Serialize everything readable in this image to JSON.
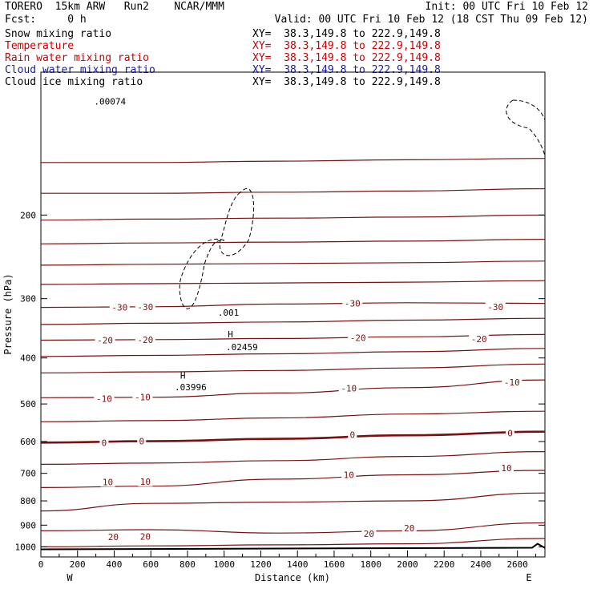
{
  "header": {
    "model": "TORERO  15km ARW   Run2    NCAR/MMM",
    "init": "Init: 00 UTC Fri 10 Feb 12",
    "fcst": "Fcst:     0 h",
    "valid": "Valid: 00 UTC Fri 10 Feb 12 (18 CST Thu 09 Feb 12)"
  },
  "fields": [
    {
      "name": "Snow mixing ratio",
      "xy": "XY=  38.3,149.8 to 222.9,149.8",
      "color": "#000000"
    },
    {
      "name": "Temperature",
      "xy": "XY=  38.3,149.8 to 222.9,149.8",
      "color": "#cc0000"
    },
    {
      "name": "Rain water mixing ratio",
      "xy": "XY=  38.3,149.8 to 222.9,149.8",
      "color": "#cc0000"
    },
    {
      "name": "Cloud water mixing ratio",
      "xy": "XY=  38.3,149.8 to 222.9,149.8",
      "color": "#1a1aa6"
    },
    {
      "name": "Cloud ice mixing ratio",
      "xy": "XY=  38.3,149.8 to 222.9,149.8",
      "color": "#000000"
    }
  ],
  "chart_data": {
    "type": "line",
    "xlabel": "Distance (km)",
    "ylabel": "Pressure (hPa)",
    "xlim": [
      0,
      2750
    ],
    "ylim": [
      1050,
      100
    ],
    "y_scale": "log",
    "xticks": [
      0,
      200,
      400,
      600,
      800,
      1000,
      1200,
      1400,
      1600,
      1800,
      2000,
      2200,
      2400,
      2600
    ],
    "yticks": [
      200,
      300,
      400,
      500,
      600,
      700,
      800,
      900,
      1000
    ],
    "x_end_labels": {
      "left": "W",
      "right": "E"
    },
    "contour_color": "#7a1010",
    "contour_labels": [
      {
        "text": "-30",
        "x": 430,
        "p": 313
      },
      {
        "text": "-30",
        "x": 570,
        "p": 312
      },
      {
        "text": "-30",
        "x": 1700,
        "p": 307
      },
      {
        "text": "-30",
        "x": 2480,
        "p": 312
      },
      {
        "text": "-20",
        "x": 350,
        "p": 367
      },
      {
        "text": "-20",
        "x": 570,
        "p": 366
      },
      {
        "text": "-20",
        "x": 1730,
        "p": 363
      },
      {
        "text": "-20",
        "x": 2390,
        "p": 365
      },
      {
        "text": "-10",
        "x": 345,
        "p": 487
      },
      {
        "text": "-10",
        "x": 555,
        "p": 484
      },
      {
        "text": "-10",
        "x": 1680,
        "p": 463
      },
      {
        "text": "-10",
        "x": 2570,
        "p": 450
      },
      {
        "text": "0",
        "x": 345,
        "p": 603
      },
      {
        "text": "0",
        "x": 550,
        "p": 599
      },
      {
        "text": "0",
        "x": 1700,
        "p": 581
      },
      {
        "text": "0",
        "x": 2560,
        "p": 576
      },
      {
        "text": "10",
        "x": 365,
        "p": 730
      },
      {
        "text": "10",
        "x": 570,
        "p": 728
      },
      {
        "text": "10",
        "x": 1680,
        "p": 705
      },
      {
        "text": "10",
        "x": 2540,
        "p": 682
      },
      {
        "text": "20",
        "x": 395,
        "p": 952
      },
      {
        "text": "20",
        "x": 570,
        "p": 951
      },
      {
        "text": "20",
        "x": 1790,
        "p": 938
      },
      {
        "text": "20",
        "x": 2010,
        "p": 913
      }
    ],
    "isotherms": [
      {
        "p": [
          155,
          155,
          154,
          153,
          152
        ]
      },
      {
        "p": [
          180,
          180,
          179,
          178,
          176
        ]
      },
      {
        "p": [
          205,
          204,
          203,
          202,
          200
        ]
      },
      {
        "p": [
          230,
          229,
          228,
          227,
          225
        ]
      },
      {
        "p": [
          255,
          254,
          253,
          252,
          250
        ]
      },
      {
        "p": [
          280,
          279,
          278,
          277,
          275
        ]
      },
      {
        "p": [
          313,
          312,
          308,
          306,
          307
        ]
      },
      {
        "p": [
          340,
          338,
          336,
          333,
          330
        ]
      },
      {
        "p": [
          367,
          366,
          364,
          361,
          357
        ]
      },
      {
        "p": [
          397,
          395,
          392,
          388,
          382
        ]
      },
      {
        "p": [
          430,
          428,
          425,
          420,
          412
        ]
      },
      {
        "p": [
          485,
          484,
          474,
          462,
          445
        ]
      },
      {
        "p": [
          545,
          542,
          535,
          525,
          518
        ]
      },
      {
        "p": [
          603,
          599,
          592,
          582,
          572
        ]
      },
      {
        "p": [
          670,
          666,
          658,
          645,
          630
        ]
      },
      {
        "p": [
          750,
          745,
          720,
          705,
          690
        ]
      },
      {
        "p": [
          840,
          810,
          805,
          800,
          770
        ]
      },
      {
        "p": [
          925,
          920,
          935,
          925,
          890
        ]
      },
      {
        "p": [
          1000,
          995,
          990,
          985,
          960
        ]
      }
    ],
    "thick_isotherm_index": 13,
    "ground_p": 1012,
    "annotations": [
      {
        "text": ".00074",
        "x": 290,
        "p": 117
      },
      {
        "text": ".001",
        "x": 965,
        "p": 326
      },
      {
        "text": "H",
        "x": 1020,
        "p": 362
      },
      {
        "text": ".02459",
        "x": 1010,
        "p": 385
      },
      {
        "text": "H",
        "x": 760,
        "p": 442
      },
      {
        "text": ".03996",
        "x": 730,
        "p": 468
      }
    ]
  }
}
